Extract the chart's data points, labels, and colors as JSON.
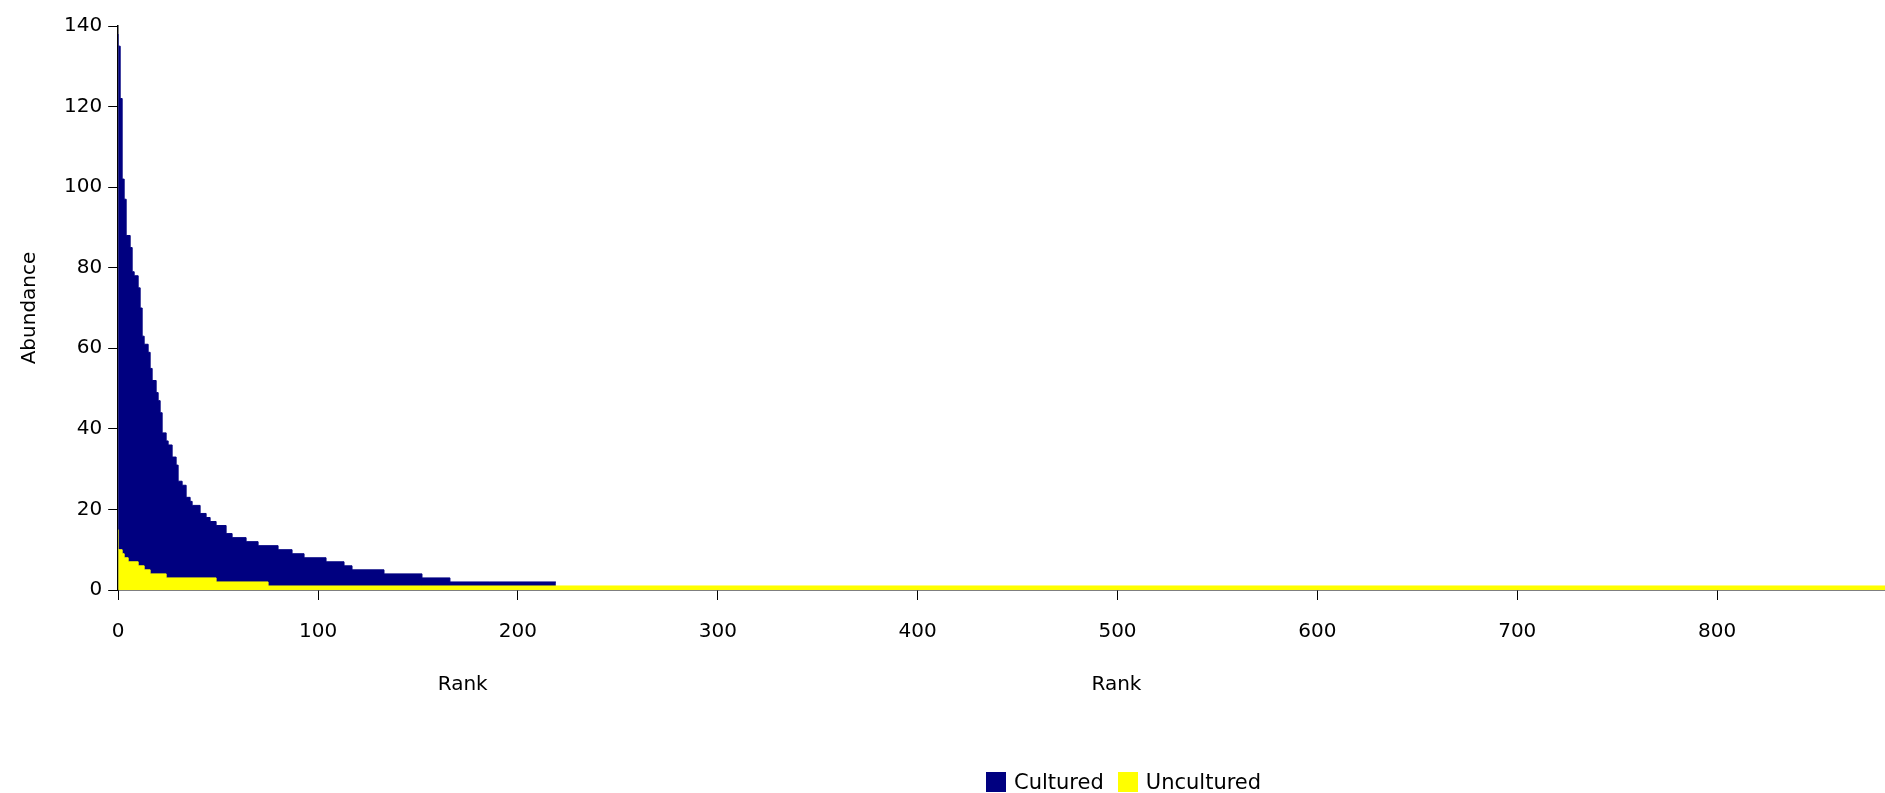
{
  "chart_data": {
    "type": "area",
    "xlabel": "Rank",
    "ylabel": "Abundance",
    "annotations": [
      "Rank"
    ],
    "xlim": [
      0,
      884
    ],
    "xticks": [
      0,
      100,
      200,
      300,
      400,
      500,
      600,
      700,
      800
    ],
    "ylim": [
      0,
      140
    ],
    "yticks": [
      0,
      20,
      40,
      60,
      80,
      100,
      120,
      140
    ],
    "grid": false,
    "legend": "bottom",
    "series": [
      {
        "name": "Cultured",
        "color": "#000080",
        "x": [
          0,
          1,
          2,
          3,
          4,
          6,
          7,
          8,
          10,
          11,
          12,
          13,
          15,
          16,
          17,
          19,
          20,
          21,
          22,
          24,
          25,
          27,
          29,
          30,
          32,
          34,
          36,
          37,
          41,
          44,
          46,
          49,
          54,
          57,
          64,
          70,
          80,
          87,
          93,
          104,
          113,
          117,
          133,
          152,
          166,
          186,
          219
        ],
        "values": [
          138,
          135,
          122,
          102,
          97,
          88,
          85,
          79,
          78,
          75,
          70,
          63,
          61,
          59,
          55,
          52,
          49,
          47,
          44,
          39,
          37,
          36,
          33,
          31,
          27,
          26,
          23,
          22,
          21,
          19,
          18,
          17,
          16,
          14,
          13,
          12,
          11,
          10,
          9,
          8,
          7,
          6,
          5,
          4,
          3,
          2,
          2
        ]
      },
      {
        "name": "Uncultured",
        "color": "#ffff00",
        "x": [
          0,
          2,
          3,
          5,
          10,
          13,
          16,
          24,
          49,
          75,
          152,
          884
        ],
        "values": [
          15,
          10,
          9,
          8,
          7,
          6,
          5,
          4,
          3,
          2,
          1,
          1
        ]
      }
    ]
  }
}
